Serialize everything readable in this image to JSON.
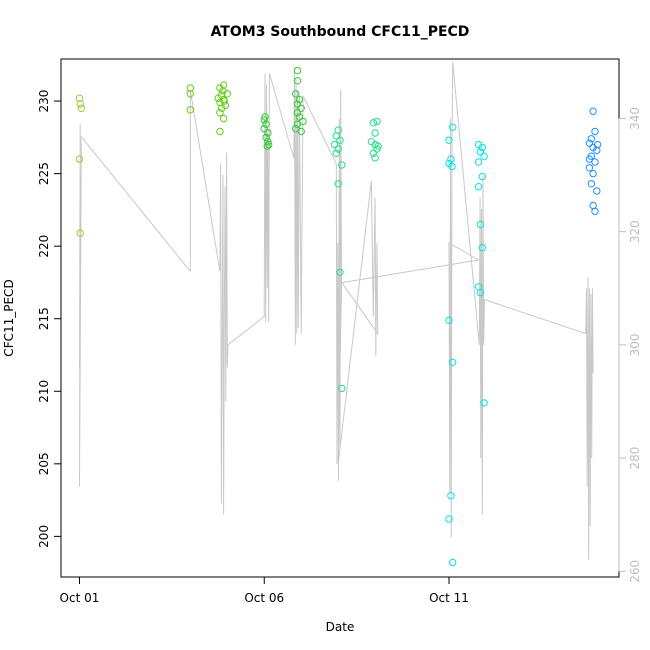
{
  "chart_data": {
    "type": "scatter",
    "title": "ATOM3 Southbound CFC11_PECD",
    "xlabel": "Date",
    "ylabel": "CFC11_PECD",
    "y2label": "",
    "x_ticks": [
      {
        "day": 1,
        "label": "Oct 01"
      },
      {
        "day": 6,
        "label": "Oct 06"
      },
      {
        "day": 11,
        "label": "Oct 11"
      }
    ],
    "y_ticks": [
      200,
      205,
      210,
      215,
      220,
      225,
      230
    ],
    "y2_ticks": [
      260,
      280,
      300,
      320,
      340
    ],
    "xlim": [
      0.5,
      15.6
    ],
    "ylim": [
      197.2,
      232.9
    ],
    "y2lim": [
      259.0,
      350.5
    ],
    "grid": false,
    "colors": {
      "axis": "#000000",
      "right_axis": "#bdbdbd",
      "line": "#c8c8c8"
    },
    "series": [
      {
        "color": "#9ACD32",
        "points": [
          {
            "x": 1.0,
            "y": 230.2
          },
          {
            "x": 1.02,
            "y": 229.8
          },
          {
            "x": 1.05,
            "y": 229.5
          },
          {
            "x": 1.0,
            "y": 226.0
          },
          {
            "x": 1.02,
            "y": 220.9
          }
        ]
      },
      {
        "color": "#66CC1A",
        "points": [
          {
            "x": 4.0,
            "y": 230.9
          },
          {
            "x": 4.0,
            "y": 230.5
          },
          {
            "x": 4.0,
            "y": 229.4
          },
          {
            "x": 4.8,
            "y": 230.9
          },
          {
            "x": 4.9,
            "y": 231.1
          },
          {
            "x": 4.85,
            "y": 230.4
          },
          {
            "x": 4.9,
            "y": 230.1
          },
          {
            "x": 4.8,
            "y": 229.9
          },
          {
            "x": 4.95,
            "y": 229.7
          },
          {
            "x": 4.85,
            "y": 229.5
          },
          {
            "x": 4.8,
            "y": 229.2
          },
          {
            "x": 4.9,
            "y": 228.8
          },
          {
            "x": 4.8,
            "y": 227.9
          },
          {
            "x": 5.0,
            "y": 230.5
          },
          {
            "x": 4.75,
            "y": 230.2
          },
          {
            "x": 4.92,
            "y": 230.0
          },
          {
            "x": 4.88,
            "y": 230.7
          }
        ]
      },
      {
        "color": "#33CC33",
        "points": [
          {
            "x": 6.0,
            "y": 228.7
          },
          {
            "x": 6.05,
            "y": 228.4
          },
          {
            "x": 6.0,
            "y": 228.1
          },
          {
            "x": 6.1,
            "y": 227.8
          },
          {
            "x": 6.05,
            "y": 227.5
          },
          {
            "x": 6.1,
            "y": 227.2
          },
          {
            "x": 6.08,
            "y": 226.9
          },
          {
            "x": 6.02,
            "y": 228.9
          },
          {
            "x": 6.12,
            "y": 227.0
          },
          {
            "x": 6.9,
            "y": 232.1
          },
          {
            "x": 6.9,
            "y": 231.4
          },
          {
            "x": 6.85,
            "y": 230.5
          },
          {
            "x": 6.95,
            "y": 230.1
          },
          {
            "x": 6.9,
            "y": 229.8
          },
          {
            "x": 7.0,
            "y": 229.5
          },
          {
            "x": 6.9,
            "y": 229.2
          },
          {
            "x": 6.95,
            "y": 228.9
          },
          {
            "x": 7.05,
            "y": 228.6
          },
          {
            "x": 6.9,
            "y": 228.4
          },
          {
            "x": 7.0,
            "y": 227.9
          },
          {
            "x": 6.85,
            "y": 228.1
          }
        ]
      },
      {
        "color": "#22E08A",
        "points": [
          {
            "x": 8.0,
            "y": 228.0
          },
          {
            "x": 7.95,
            "y": 227.6
          },
          {
            "x": 8.05,
            "y": 227.3
          },
          {
            "x": 7.9,
            "y": 227.0
          },
          {
            "x": 8.0,
            "y": 226.7
          },
          {
            "x": 7.95,
            "y": 226.4
          },
          {
            "x": 8.1,
            "y": 225.6
          },
          {
            "x": 8.0,
            "y": 224.3
          },
          {
            "x": 8.05,
            "y": 218.2
          },
          {
            "x": 8.1,
            "y": 210.2
          },
          {
            "x": 8.95,
            "y": 228.5
          },
          {
            "x": 9.05,
            "y": 228.6
          },
          {
            "x": 9.0,
            "y": 227.8
          },
          {
            "x": 8.9,
            "y": 227.2
          },
          {
            "x": 9.0,
            "y": 227.0
          },
          {
            "x": 9.05,
            "y": 226.7
          },
          {
            "x": 8.95,
            "y": 226.4
          },
          {
            "x": 9.0,
            "y": 226.1
          },
          {
            "x": 9.08,
            "y": 226.9
          }
        ]
      },
      {
        "color": "#00E5E5",
        "points": [
          {
            "x": 11.0,
            "y": 227.3
          },
          {
            "x": 11.1,
            "y": 228.2
          },
          {
            "x": 11.05,
            "y": 226.0
          },
          {
            "x": 11.0,
            "y": 225.7
          },
          {
            "x": 11.08,
            "y": 225.5
          },
          {
            "x": 11.0,
            "y": 214.9
          },
          {
            "x": 11.1,
            "y": 212.0
          },
          {
            "x": 11.05,
            "y": 202.8
          },
          {
            "x": 11.0,
            "y": 201.2
          },
          {
            "x": 11.1,
            "y": 198.2
          },
          {
            "x": 11.8,
            "y": 227.0
          },
          {
            "x": 11.9,
            "y": 226.8
          },
          {
            "x": 11.85,
            "y": 226.5
          },
          {
            "x": 11.95,
            "y": 226.2
          },
          {
            "x": 11.8,
            "y": 225.8
          },
          {
            "x": 11.9,
            "y": 224.8
          },
          {
            "x": 11.8,
            "y": 224.1
          },
          {
            "x": 11.85,
            "y": 221.5
          },
          {
            "x": 11.9,
            "y": 219.9
          },
          {
            "x": 11.8,
            "y": 217.2
          },
          {
            "x": 11.85,
            "y": 216.8
          },
          {
            "x": 11.95,
            "y": 209.2
          }
        ]
      },
      {
        "color": "#1E90FF",
        "points": [
          {
            "x": 14.9,
            "y": 229.3
          },
          {
            "x": 14.95,
            "y": 227.9
          },
          {
            "x": 14.85,
            "y": 227.4
          },
          {
            "x": 14.8,
            "y": 227.1
          },
          {
            "x": 14.9,
            "y": 226.8
          },
          {
            "x": 15.0,
            "y": 226.6
          },
          {
            "x": 14.85,
            "y": 226.2
          },
          {
            "x": 14.95,
            "y": 225.8
          },
          {
            "x": 14.8,
            "y": 225.4
          },
          {
            "x": 14.9,
            "y": 225.0
          },
          {
            "x": 14.85,
            "y": 224.3
          },
          {
            "x": 15.0,
            "y": 223.8
          },
          {
            "x": 14.9,
            "y": 222.8
          },
          {
            "x": 14.95,
            "y": 222.4
          },
          {
            "x": 14.8,
            "y": 226.0
          },
          {
            "x": 15.02,
            "y": 227.0
          }
        ]
      }
    ],
    "secondary_line": {
      "color": "#c8c8c8",
      "points": [
        {
          "x": 1.0,
          "y2": 296
        },
        {
          "x": 1.02,
          "y2": 339
        },
        {
          "x": 1.0,
          "y2": 275
        },
        {
          "x": 1.05,
          "y2": 335
        },
        {
          "x": 1.02,
          "y2": 337
        },
        {
          "x": 4.0,
          "y2": 313
        },
        {
          "x": 4.0,
          "y2": 326
        },
        {
          "x": 4.0,
          "y2": 345
        },
        {
          "x": 4.8,
          "y2": 313
        },
        {
          "x": 4.82,
          "y2": 332
        },
        {
          "x": 4.84,
          "y2": 272
        },
        {
          "x": 4.86,
          "y2": 300
        },
        {
          "x": 4.88,
          "y2": 330
        },
        {
          "x": 4.9,
          "y2": 270
        },
        {
          "x": 4.92,
          "y2": 305
        },
        {
          "x": 4.94,
          "y2": 328
        },
        {
          "x": 4.96,
          "y2": 290
        },
        {
          "x": 4.98,
          "y2": 334
        },
        {
          "x": 5.0,
          "y2": 296
        },
        {
          "x": 5.02,
          "y2": 300
        },
        {
          "x": 6.0,
          "y2": 305
        },
        {
          "x": 6.02,
          "y2": 348
        },
        {
          "x": 6.04,
          "y2": 304
        },
        {
          "x": 6.06,
          "y2": 346
        },
        {
          "x": 6.08,
          "y2": 310
        },
        {
          "x": 6.1,
          "y2": 338
        },
        {
          "x": 6.12,
          "y2": 304
        },
        {
          "x": 6.14,
          "y2": 348
        },
        {
          "x": 6.8,
          "y2": 333
        },
        {
          "x": 6.82,
          "y2": 349
        },
        {
          "x": 6.84,
          "y2": 300
        },
        {
          "x": 6.86,
          "y2": 347
        },
        {
          "x": 6.88,
          "y2": 302
        },
        {
          "x": 6.9,
          "y2": 345
        },
        {
          "x": 6.92,
          "y2": 303
        },
        {
          "x": 6.95,
          "y2": 344
        },
        {
          "x": 7.0,
          "y2": 302
        },
        {
          "x": 7.05,
          "y2": 344
        },
        {
          "x": 7.95,
          "y2": 332
        },
        {
          "x": 7.97,
          "y2": 279
        },
        {
          "x": 7.99,
          "y2": 318
        },
        {
          "x": 8.01,
          "y2": 276
        },
        {
          "x": 8.03,
          "y2": 340
        },
        {
          "x": 8.05,
          "y2": 282
        },
        {
          "x": 8.07,
          "y2": 345
        },
        {
          "x": 8.09,
          "y2": 310
        },
        {
          "x": 8.0,
          "y2": 279
        },
        {
          "x": 8.9,
          "y2": 329
        },
        {
          "x": 8.95,
          "y2": 305
        },
        {
          "x": 9.0,
          "y2": 326
        },
        {
          "x": 9.02,
          "y2": 298
        },
        {
          "x": 9.05,
          "y2": 318
        },
        {
          "x": 9.07,
          "y2": 302
        },
        {
          "x": 8.1,
          "y2": 311
        },
        {
          "x": 11.8,
          "y2": 315
        },
        {
          "x": 11.0,
          "y2": 318
        },
        {
          "x": 11.02,
          "y2": 274
        },
        {
          "x": 11.04,
          "y2": 340
        },
        {
          "x": 11.06,
          "y2": 266
        },
        {
          "x": 11.08,
          "y2": 335
        },
        {
          "x": 11.1,
          "y2": 350
        },
        {
          "x": 11.82,
          "y2": 300
        },
        {
          "x": 11.84,
          "y2": 326
        },
        {
          "x": 11.86,
          "y2": 280
        },
        {
          "x": 11.88,
          "y2": 324
        },
        {
          "x": 11.9,
          "y2": 270
        },
        {
          "x": 11.92,
          "y2": 330
        },
        {
          "x": 11.94,
          "y2": 300
        },
        {
          "x": 11.96,
          "y2": 308
        },
        {
          "x": 14.7,
          "y2": 302
        },
        {
          "x": 14.72,
          "y2": 310
        },
        {
          "x": 14.74,
          "y2": 275
        },
        {
          "x": 14.76,
          "y2": 312
        },
        {
          "x": 14.78,
          "y2": 262
        },
        {
          "x": 14.8,
          "y2": 310
        },
        {
          "x": 14.82,
          "y2": 268
        },
        {
          "x": 14.84,
          "y2": 309
        },
        {
          "x": 14.86,
          "y2": 280
        },
        {
          "x": 14.88,
          "y2": 310
        },
        {
          "x": 14.9,
          "y2": 295
        }
      ]
    }
  }
}
